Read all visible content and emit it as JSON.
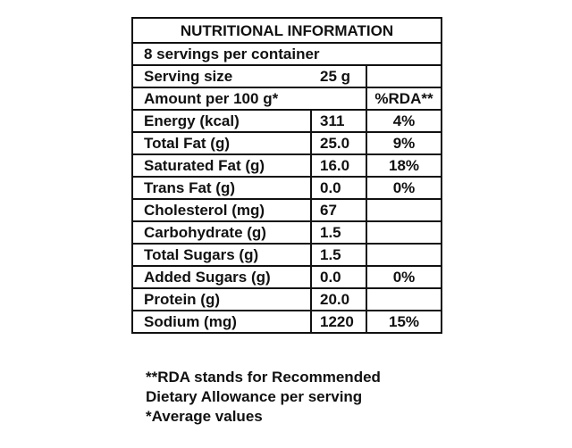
{
  "label": {
    "title": "NUTRITIONAL INFORMATION",
    "servings_per_container": "8 servings per container",
    "serving_size_label": "Serving size",
    "serving_size_value": "25 g",
    "amount_header": "Amount per 100 g*",
    "rda_header": "%RDA**",
    "nutrients": [
      {
        "name": "Energy (kcal)",
        "value": "311",
        "rda": "4%",
        "heavy": true
      },
      {
        "name": "Total Fat (g)",
        "value": "25.0",
        "rda": "9%",
        "heavy": true
      },
      {
        "name": "Saturated Fat (g)",
        "value": "16.0",
        "rda": "18%",
        "heavy": false
      },
      {
        "name": "Trans Fat (g)",
        "value": "0.0",
        "rda": "0%",
        "heavy": false
      },
      {
        "name": "Cholesterol (mg)",
        "value": "67",
        "rda": "",
        "heavy": false
      },
      {
        "name": "Carbohydrate (g)",
        "value": "1.5",
        "rda": "",
        "heavy": true
      },
      {
        "name": "Total Sugars (g)",
        "value": "1.5",
        "rda": "",
        "heavy": false
      },
      {
        "name": "Added Sugars (g)",
        "value": "0.0",
        "rda": "0%",
        "heavy": false
      },
      {
        "name": "Protein (g)",
        "value": "20.0",
        "rda": "",
        "heavy": true
      },
      {
        "name": "Sodium (mg)",
        "value": "1220",
        "rda": "15%",
        "heavy": true
      }
    ],
    "footnotes": [
      "**RDA stands for Recommended",
      "Dietary Allowance per serving",
      "*Average values"
    ]
  }
}
